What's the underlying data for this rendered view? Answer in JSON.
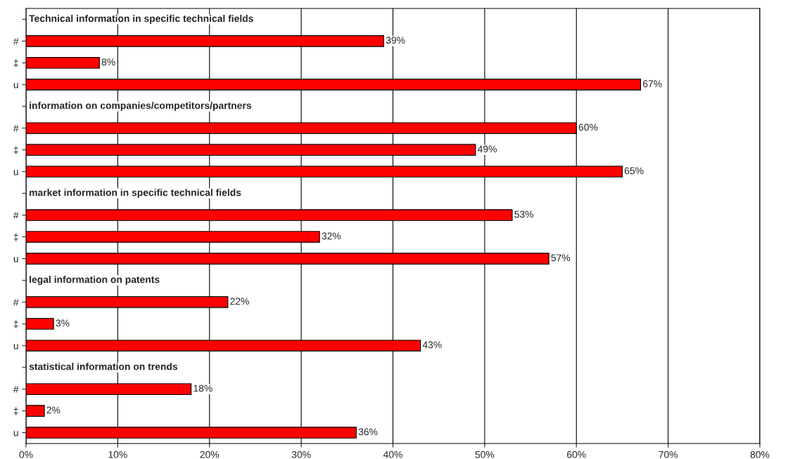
{
  "chart_data": {
    "type": "bar",
    "orientation": "horizontal",
    "categories": [
      null,
      "#",
      "‡",
      "u",
      null,
      "#",
      "‡",
      "u",
      null,
      "#",
      "‡",
      "u",
      null,
      "#",
      "‡",
      "u",
      null,
      "#",
      "‡",
      "u"
    ],
    "values": [
      null,
      39,
      8,
      67,
      null,
      60,
      49,
      65,
      null,
      53,
      32,
      57,
      null,
      22,
      3,
      43,
      null,
      18,
      2,
      36
    ],
    "value_labels": [
      null,
      "39%",
      "8%",
      "67%",
      null,
      "60%",
      "49%",
      "65%",
      null,
      "53%",
      "32%",
      "57%",
      null,
      "22%",
      "3%",
      "43%",
      null,
      "18%",
      "2%",
      "36%"
    ],
    "color": "#ff0000",
    "annotations": [
      "Technical information in specific technical fields",
      "information on companies/competitors/partners",
      "market information in specific technical fields",
      "legal information on patents",
      "statistical information on trends"
    ],
    "xlim": [
      0,
      80
    ],
    "xticks": [
      {
        "value": 0,
        "label": "0%"
      },
      {
        "value": 10,
        "label": "10%"
      },
      {
        "value": 20,
        "label": "20%"
      },
      {
        "value": 30,
        "label": "30%"
      },
      {
        "value": 40,
        "label": "40%"
      },
      {
        "value": 50,
        "label": "50%"
      },
      {
        "value": 60,
        "label": "60%"
      },
      {
        "value": 70,
        "label": "70%"
      },
      {
        "value": 80,
        "label": "80%"
      }
    ],
    "grid": "x",
    "legend": false
  }
}
